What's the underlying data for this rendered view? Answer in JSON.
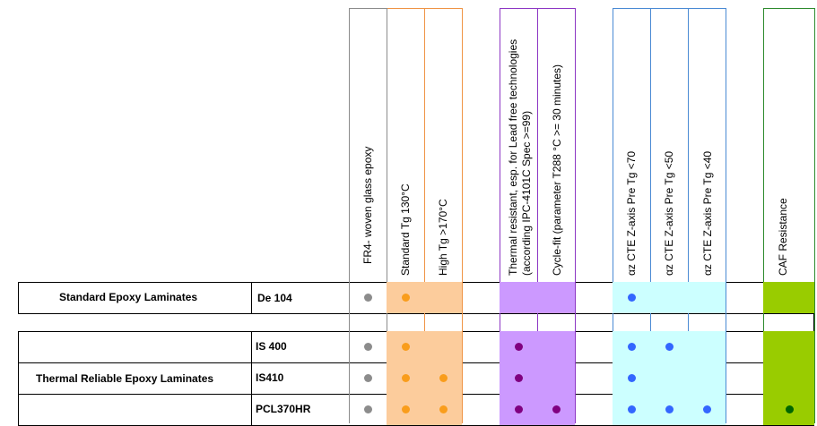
{
  "colors": {
    "gray": "#8c8c8c",
    "orange_fill": "#fccc9c",
    "orange_dot": "#f99d1c",
    "orange_border": "#ef9445",
    "purple_fill": "#cc99ff",
    "purple_dot": "#800080",
    "purple_border": "#8d37c4",
    "cyan_fill": "#ccffff",
    "blue_dot": "#3366ff",
    "blue_border": "#4a8ad4",
    "green_fill": "#99cc00",
    "green_dot": "#006600",
    "green_border": "#2e8b2e",
    "grid": "#000000"
  },
  "columns": [
    {
      "label": "FR4- woven glass epoxy"
    },
    {
      "label": "Standard Tg 130°C"
    },
    {
      "label": "High Tg >170°C"
    },
    {
      "label": "Thermal resistant, esp. for Lead free technologies",
      "label2": "(according IPC-4101C Spec >=99)"
    },
    {
      "label": "Cycle-fit (parameter T288 °C >= 30 minutes)"
    },
    {
      "label": "αz CTE Z-axis Pre Tg <70"
    },
    {
      "label": "αz CTE Z-axis Pre Tg <50"
    },
    {
      "label": "αz CTE Z-axis Pre Tg <40"
    },
    {
      "label": "CAF Resistance"
    }
  ],
  "groups": [
    {
      "name": "Standard Epoxy Laminates",
      "rows": [
        {
          "name": "De 104"
        }
      ]
    },
    {
      "name": "Thermal Reliable Epoxy Laminates",
      "rows": [
        {
          "name": "IS 400"
        },
        {
          "name": "IS410"
        },
        {
          "name": "PCL370HR"
        }
      ]
    }
  ],
  "matrix": {
    "De 104": [
      true,
      true,
      false,
      false,
      false,
      true,
      false,
      false,
      false
    ],
    "IS 400": [
      true,
      true,
      false,
      true,
      false,
      true,
      true,
      false,
      false
    ],
    "IS410": [
      true,
      true,
      true,
      true,
      false,
      true,
      false,
      false,
      false
    ],
    "PCL370HR": [
      true,
      true,
      true,
      true,
      true,
      true,
      true,
      true,
      true
    ]
  }
}
